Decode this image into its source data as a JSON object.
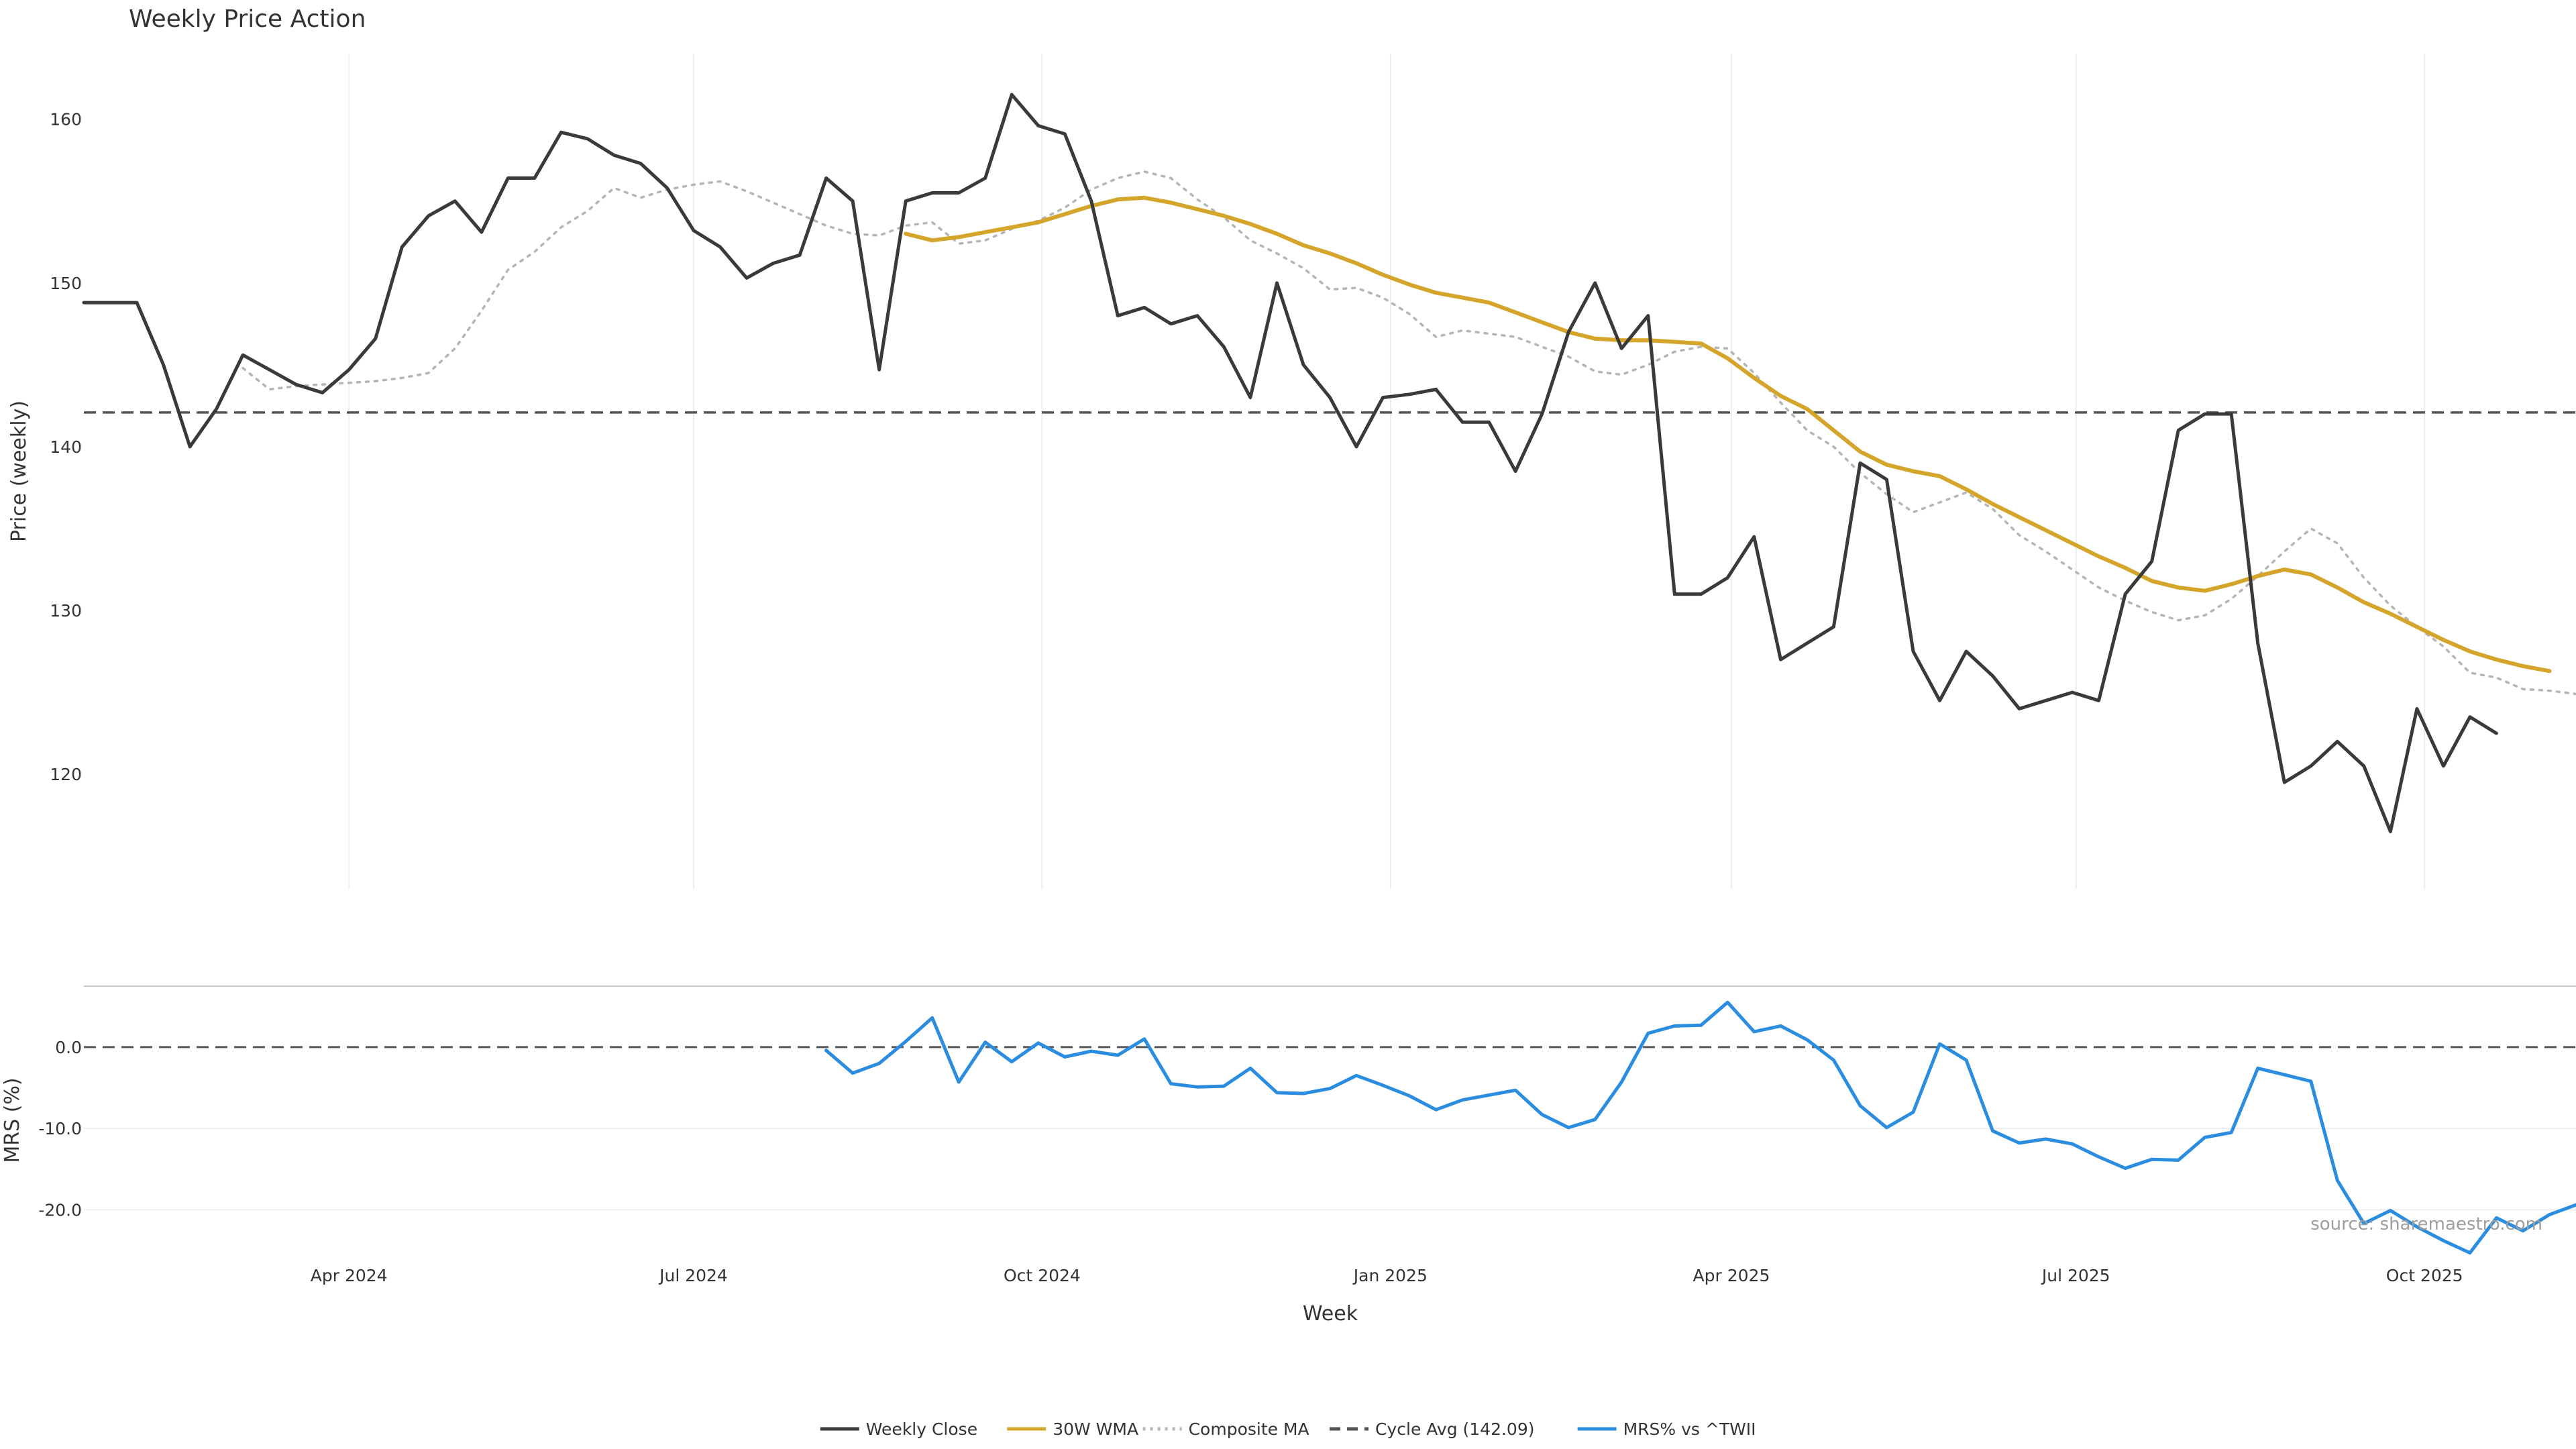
{
  "chart_data": {
    "type": "line",
    "title": "Weekly Price Action",
    "source_note": "source: sharemaestro.com",
    "xlabel": "Week",
    "x_ticks": [
      "Apr 2024",
      "Jul 2024",
      "Oct 2024",
      "Jan 2025",
      "Apr 2025",
      "Jul 2025",
      "Oct 2025"
    ],
    "x_tick_dates": [
      "2024-04-01",
      "2024-07-01",
      "2024-10-01",
      "2025-01-01",
      "2025-04-01",
      "2025-07-01",
      "2025-10-01"
    ],
    "xlim": [
      "2024-01-22",
      "2025-11-10"
    ],
    "grid": true,
    "legend_position": "bottom-center",
    "colors": {
      "close": "#3a3a3a",
      "wma": "#d4a52a",
      "composite": "#b5b5b5",
      "cycle": "#555555",
      "mrs": "#2b8ddf"
    },
    "price_panel": {
      "ylabel": "Price (weekly)",
      "ylim": [
        113,
        164
      ],
      "y_ticks": [
        120,
        130,
        140,
        150,
        160
      ],
      "cycle_avg": 142.09,
      "series": [
        {
          "name": "Weekly Close",
          "style": "solid",
          "start": "2024-01-22",
          "values": [
            148.8,
            148.8,
            148.8,
            145.0,
            140.0,
            142.3,
            145.6,
            144.7,
            143.8,
            143.3,
            144.7,
            146.6,
            152.2,
            154.1,
            155.0,
            153.1,
            156.4,
            156.4,
            159.2,
            158.8,
            157.8,
            157.3,
            155.8,
            153.2,
            152.2,
            150.3,
            151.2,
            151.7,
            156.4,
            155.0,
            144.7,
            155.0,
            155.5,
            155.5,
            156.4,
            161.5,
            159.6,
            159.1,
            155.0,
            148.0,
            148.5,
            147.5,
            148.0,
            146.1,
            143.0,
            150.0,
            145.0,
            143.0,
            140.0,
            143.0,
            143.2,
            143.5,
            141.5,
            141.5,
            138.5,
            142.0,
            147.0,
            150.0,
            146.0,
            148.0,
            131.0,
            131.0,
            132.0,
            134.5,
            127.0,
            128.0,
            129.0,
            139.0,
            138.0,
            127.5,
            124.5,
            127.5,
            126.0,
            124.0,
            124.5,
            125.0,
            124.5,
            131.0,
            133.0,
            141.0,
            142.0,
            142.0,
            128.0,
            119.5,
            120.5,
            122.0,
            120.5,
            116.5,
            124.0,
            120.5,
            123.5,
            122.5
          ]
        },
        {
          "name": "30W WMA",
          "style": "solid",
          "start": "2024-08-26",
          "values": [
            153.0,
            152.6,
            152.8,
            153.1,
            153.4,
            153.7,
            154.2,
            154.7,
            155.1,
            155.2,
            154.9,
            154.5,
            154.1,
            153.6,
            153.0,
            152.3,
            151.8,
            151.2,
            150.5,
            149.9,
            149.4,
            149.1,
            148.8,
            148.2,
            147.6,
            147.0,
            146.6,
            146.5,
            146.5,
            146.4,
            146.3,
            145.4,
            144.2,
            143.1,
            142.3,
            141.0,
            139.7,
            138.9,
            138.5,
            138.2,
            137.4,
            136.5,
            135.7,
            134.9,
            134.1,
            133.3,
            132.6,
            131.8,
            131.4,
            131.2,
            131.6,
            132.1,
            132.5,
            132.2,
            131.4,
            130.5,
            129.8,
            129.0,
            128.2,
            127.5,
            127.0,
            126.6,
            126.3
          ]
        },
        {
          "name": "Composite MA",
          "style": "dotted",
          "start": "2024-03-04",
          "values": [
            144.8,
            143.5,
            143.7,
            143.8,
            143.9,
            144.0,
            144.2,
            144.5,
            146.0,
            148.3,
            150.8,
            151.9,
            153.4,
            154.4,
            155.8,
            155.2,
            155.7,
            156.0,
            156.2,
            155.6,
            154.9,
            154.2,
            153.5,
            153.0,
            152.9,
            153.5,
            153.7,
            152.4,
            152.6,
            153.3,
            153.8,
            154.6,
            155.7,
            156.4,
            156.8,
            156.4,
            155.1,
            154.0,
            152.6,
            151.8,
            150.9,
            149.6,
            149.7,
            149.1,
            148.1,
            146.7,
            147.1,
            146.9,
            146.7,
            146.1,
            145.5,
            144.6,
            144.4,
            145.0,
            145.8,
            146.1,
            146.0,
            144.5,
            142.7,
            141.0,
            140.0,
            138.4,
            137.1,
            136.0,
            136.6,
            137.2,
            136.2,
            134.6,
            133.6,
            132.5,
            131.4,
            130.6,
            129.9,
            129.4,
            129.7,
            130.7,
            132.1,
            133.6,
            135.0,
            134.1,
            132.0,
            130.3,
            129.0,
            127.8,
            126.2,
            125.9,
            125.2,
            125.1,
            124.9
          ]
        }
      ]
    },
    "mrs_panel": {
      "ylabel": "MRS (%)",
      "ylim": [
        -25.5,
        7.5
      ],
      "y_ticks": [
        0.0,
        -10.0,
        -20.0
      ],
      "y_tick_labels": [
        "0.0",
        "-10.0",
        "-20.0"
      ],
      "zero_line": 0,
      "series": [
        {
          "name": "MRS% vs ^TWII",
          "start": "2024-08-05",
          "values": [
            -0.4,
            -3.2,
            -2.0,
            0.7,
            3.6,
            -4.3,
            0.6,
            -1.8,
            0.5,
            -1.2,
            -0.5,
            -1.0,
            1.0,
            -4.5,
            -4.9,
            -4.8,
            -2.6,
            -5.6,
            -5.7,
            -5.1,
            -3.5,
            -4.7,
            -6.0,
            -7.7,
            -6.5,
            -5.9,
            -5.3,
            -8.3,
            -9.9,
            -8.9,
            -4.3,
            1.7,
            2.6,
            2.7,
            5.5,
            1.9,
            2.6,
            0.9,
            -1.6,
            -7.2,
            -9.9,
            -8.0,
            0.4,
            -1.6,
            -10.3,
            -11.8,
            -11.3,
            -11.9,
            -13.5,
            -14.9,
            -13.8,
            -13.9,
            -11.1,
            -10.5,
            -2.6,
            -3.4,
            -4.2,
            -16.4,
            -21.7,
            -20.1,
            -22.1,
            -23.8,
            -25.3,
            -21.0,
            -22.6,
            -20.6,
            -19.4
          ]
        }
      ]
    },
    "legend": [
      {
        "label": "Weekly Close",
        "key": "close",
        "style": "solid"
      },
      {
        "label": "30W WMA",
        "key": "wma",
        "style": "solid"
      },
      {
        "label": "Composite MA",
        "key": "composite",
        "style": "dotted"
      },
      {
        "label": "Cycle Avg (142.09)",
        "key": "cycle",
        "style": "dashed"
      },
      {
        "label": "MRS% vs ^TWII",
        "key": "mrs",
        "style": "solid"
      }
    ]
  }
}
